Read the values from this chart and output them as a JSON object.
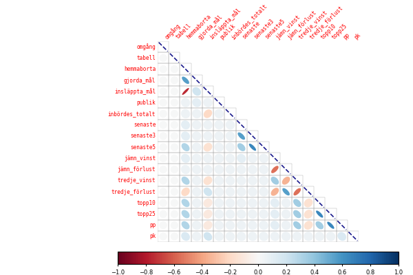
{
  "variables": [
    "omgång",
    "tabell",
    "hemmaborta",
    "gjorda_mål",
    "insläppta_mål",
    "publik",
    "inbördes_totalt",
    "senaste",
    "senaste3",
    "senaste5",
    "jämn_vinst",
    "jämn_förlust",
    "tredje_vinst",
    "tredje_förlust",
    "topp10",
    "topp25",
    "pp",
    "pk"
  ],
  "correlations": [
    [
      1.0,
      0.0,
      0.0,
      0.0,
      0.0,
      0.0,
      0.0,
      0.0,
      0.0,
      0.0,
      0.0,
      0.0,
      0.0,
      0.0,
      0.0,
      0.0,
      0.0,
      0.0
    ],
    [
      0.0,
      1.0,
      0.0,
      0.0,
      0.0,
      0.0,
      0.0,
      0.0,
      0.0,
      0.0,
      0.0,
      0.0,
      0.0,
      0.0,
      0.0,
      0.0,
      0.0,
      0.0
    ],
    [
      0.0,
      0.0,
      1.0,
      0.55,
      -0.75,
      0.05,
      0.05,
      0.1,
      0.1,
      0.3,
      0.1,
      0.05,
      0.3,
      -0.2,
      0.3,
      0.3,
      0.3,
      0.15
    ],
    [
      0.0,
      0.0,
      0.55,
      1.0,
      0.2,
      0.1,
      0.05,
      0.05,
      0.05,
      0.05,
      0.05,
      0.05,
      0.05,
      0.05,
      0.05,
      0.05,
      0.05,
      0.05
    ],
    [
      0.0,
      0.0,
      -0.75,
      0.2,
      1.0,
      0.05,
      -0.2,
      0.05,
      0.05,
      -0.15,
      0.05,
      0.05,
      -0.15,
      0.2,
      -0.1,
      -0.1,
      -0.1,
      0.2
    ],
    [
      0.0,
      0.0,
      0.05,
      0.1,
      0.05,
      1.0,
      0.05,
      0.05,
      0.05,
      0.05,
      0.05,
      0.05,
      0.05,
      0.05,
      0.05,
      0.05,
      0.05,
      0.05
    ],
    [
      0.0,
      0.0,
      0.05,
      0.05,
      -0.2,
      0.05,
      1.0,
      0.05,
      0.05,
      0.05,
      0.05,
      0.05,
      0.05,
      0.05,
      0.05,
      0.05,
      0.05,
      0.05
    ],
    [
      0.0,
      0.0,
      0.1,
      0.05,
      0.05,
      0.05,
      0.05,
      1.0,
      0.55,
      0.35,
      0.1,
      0.05,
      0.05,
      0.05,
      0.05,
      0.05,
      0.05,
      0.05
    ],
    [
      0.0,
      0.0,
      0.1,
      0.05,
      0.05,
      0.05,
      0.05,
      0.55,
      1.0,
      0.65,
      0.05,
      0.05,
      0.05,
      0.05,
      0.05,
      0.05,
      0.05,
      0.05
    ],
    [
      0.0,
      0.0,
      0.3,
      0.05,
      -0.15,
      0.05,
      0.05,
      0.35,
      0.65,
      1.0,
      0.05,
      0.05,
      0.05,
      0.05,
      0.05,
      0.05,
      0.05,
      0.05
    ],
    [
      0.0,
      0.0,
      0.1,
      0.05,
      0.05,
      0.05,
      0.05,
      0.1,
      0.05,
      0.05,
      1.0,
      -0.55,
      0.35,
      -0.35,
      0.1,
      0.1,
      0.1,
      0.05
    ],
    [
      0.0,
      0.0,
      0.05,
      0.05,
      0.05,
      0.05,
      0.05,
      0.05,
      0.05,
      0.05,
      -0.55,
      1.0,
      -0.35,
      0.55,
      0.05,
      0.05,
      0.05,
      0.05
    ],
    [
      0.0,
      0.0,
      0.3,
      0.05,
      -0.15,
      0.05,
      0.05,
      0.05,
      0.05,
      0.05,
      0.35,
      -0.35,
      1.0,
      -0.55,
      0.35,
      0.35,
      0.35,
      0.05
    ],
    [
      0.0,
      0.0,
      -0.2,
      0.05,
      0.2,
      0.05,
      0.05,
      0.05,
      0.05,
      0.05,
      -0.35,
      0.55,
      -0.55,
      1.0,
      -0.15,
      -0.15,
      -0.15,
      0.05
    ],
    [
      0.0,
      0.0,
      0.3,
      0.05,
      -0.1,
      0.05,
      0.05,
      0.05,
      0.05,
      0.05,
      0.1,
      0.05,
      0.35,
      -0.15,
      1.0,
      0.65,
      0.35,
      0.05
    ],
    [
      0.0,
      0.0,
      0.3,
      0.05,
      -0.1,
      0.05,
      0.05,
      0.05,
      0.05,
      0.05,
      0.1,
      0.05,
      0.35,
      -0.15,
      0.65,
      1.0,
      0.65,
      0.05
    ],
    [
      0.0,
      0.0,
      0.3,
      0.05,
      -0.1,
      0.05,
      0.05,
      0.05,
      0.05,
      0.05,
      0.1,
      0.05,
      0.35,
      -0.15,
      0.35,
      0.65,
      1.0,
      0.15
    ],
    [
      0.0,
      0.0,
      0.15,
      0.05,
      0.2,
      0.05,
      0.05,
      0.05,
      0.05,
      0.05,
      0.05,
      0.05,
      0.05,
      0.05,
      0.05,
      0.05,
      0.15,
      1.0
    ]
  ],
  "label_color": "#FF0000",
  "colormap": "RdBu",
  "vmin": -1,
  "vmax": 1,
  "background_color": "#FFFFFF",
  "grid_color": "#AAAAAA",
  "colorbar_ticks": [
    -1,
    -0.8,
    -0.6,
    -0.4,
    -0.2,
    0,
    0.2,
    0.4,
    0.6,
    0.8,
    1
  ],
  "figsize": [
    6.0,
    4.0
  ],
  "dpi": 100
}
